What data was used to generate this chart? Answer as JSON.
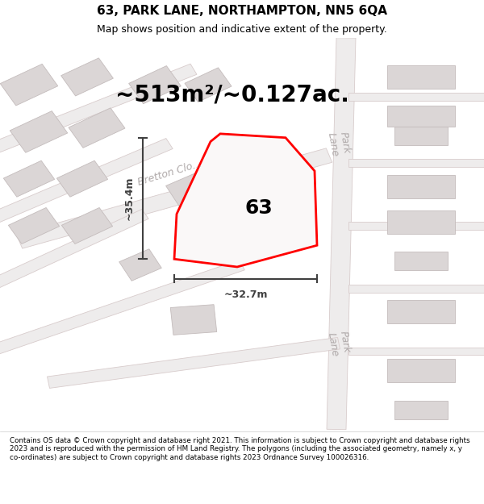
{
  "title": "63, PARK LANE, NORTHAMPTON, NN5 6QA",
  "subtitle": "Map shows position and indicative extent of the property.",
  "footer": "Contains OS data © Crown copyright and database right 2021. This information is subject to Crown copyright and database rights 2023 and is reproduced with the permission of HM Land Registry. The polygons (including the associated geometry, namely x, y co-ordinates) are subject to Crown copyright and database rights 2023 Ordnance Survey 100026316.",
  "area_label": "~513m²/~0.127ac.",
  "width_label": "~32.7m",
  "height_label": "~35.4m",
  "property_number": "63",
  "map_bg": "#f7f5f5",
  "road_fill": "#f0eaea",
  "road_edge": "#e8c8c8",
  "building_fill": "#dbd6d6",
  "building_edge": "#c4bcbc",
  "street_label_color": "#b0aaaa",
  "dim_color": "#404040",
  "red_poly": "#ff0000",
  "title_fontsize": 11,
  "subtitle_fontsize": 9,
  "area_fontsize": 20,
  "dim_fontsize": 9,
  "number_fontsize": 18,
  "street_fontsize": 9
}
